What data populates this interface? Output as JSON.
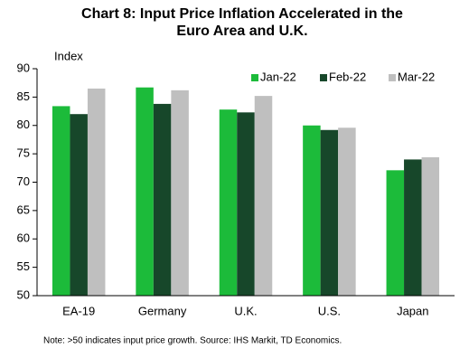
{
  "chart_data": {
    "type": "bar",
    "title": [
      "Chart 8: Input Price Inflation  Accelerated in the",
      "Euro Area and U.K."
    ],
    "y_label": "Index",
    "note": "Note:  >50 indicates  input price growth. Source:  IHS  Markit,  TD Economics.",
    "categories": [
      "EA-19",
      "Germany",
      "U.K.",
      "U.S.",
      "Japan"
    ],
    "series": [
      {
        "name": "Jan-22",
        "color": "#1cbb3a",
        "values": [
          83.4,
          86.7,
          82.8,
          80.0,
          72.1
        ]
      },
      {
        "name": "Feb-22",
        "color": "#17472a",
        "values": [
          82.0,
          83.8,
          82.3,
          79.2,
          74.0
        ]
      },
      {
        "name": "Mar-22",
        "color": "#bfbfbf",
        "values": [
          86.5,
          86.2,
          85.2,
          79.6,
          74.4
        ]
      }
    ],
    "ylim": [
      50,
      90
    ],
    "yticks": [
      50,
      55,
      60,
      65,
      70,
      75,
      80,
      85,
      90
    ],
    "grid": false
  }
}
